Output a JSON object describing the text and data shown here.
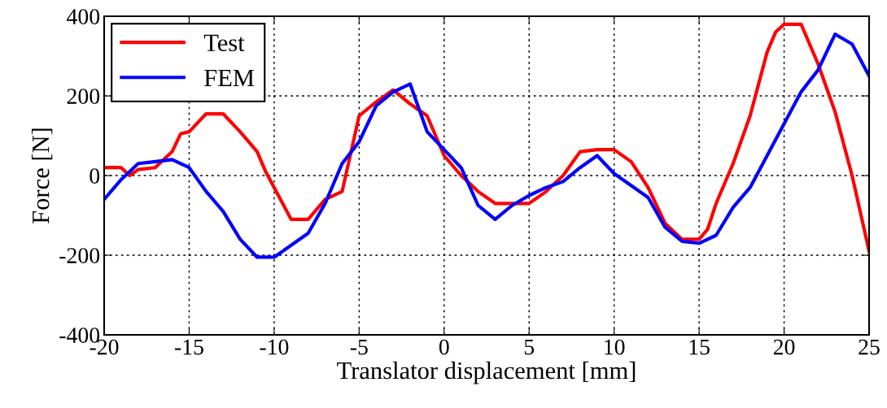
{
  "chart_data": {
    "type": "line",
    "xlabel": "Translator displacement [mm]",
    "ylabel": "Force [N]",
    "xlim": [
      -20,
      25
    ],
    "xticks": [
      -20,
      -15,
      -10,
      -5,
      0,
      5,
      10,
      15,
      20,
      25
    ],
    "ylim": [
      -400,
      400
    ],
    "yticks": [
      -400,
      -200,
      0,
      200,
      400
    ],
    "grid": true,
    "legend": "top left",
    "line_style": "solid",
    "marker": "none",
    "series": [
      {
        "name": "Test",
        "color": "#ff0000",
        "x": [
          -20,
          -19,
          -18.5,
          -18,
          -17,
          -16,
          -15.5,
          -15,
          -14,
          -13,
          -12,
          -11,
          -10.5,
          -10,
          -9,
          -8,
          -7,
          -6,
          -5,
          -4,
          -3,
          -2,
          -1,
          0,
          1,
          2,
          3,
          4,
          5,
          6,
          7,
          8,
          9,
          10,
          11,
          12,
          13,
          14,
          15,
          15.5,
          16,
          17,
          18,
          19,
          19.5,
          20,
          21,
          22,
          23,
          24,
          25
        ],
        "values": [
          20,
          20,
          0,
          15,
          20,
          60,
          105,
          110,
          155,
          155,
          110,
          60,
          10,
          -30,
          -110,
          -110,
          -60,
          -40,
          150,
          185,
          215,
          180,
          150,
          50,
          0,
          -40,
          -70,
          -70,
          -70,
          -40,
          0,
          60,
          65,
          65,
          35,
          -30,
          -120,
          -160,
          -160,
          -135,
          -70,
          30,
          150,
          310,
          360,
          380,
          380,
          280,
          160,
          0,
          -190
        ]
      },
      {
        "name": "FEM",
        "color": "#0000ff",
        "x": [
          -20,
          -19,
          -18,
          -17,
          -16,
          -15,
          -14,
          -13,
          -12,
          -11,
          -10,
          -9,
          -8,
          -7,
          -6,
          -5,
          -4,
          -3,
          -2,
          -1,
          0,
          1,
          2,
          3,
          4,
          5,
          6,
          7,
          8,
          9,
          10,
          11,
          12,
          13,
          14,
          15,
          16,
          17,
          18,
          19,
          20,
          21,
          22,
          23,
          24,
          25
        ],
        "values": [
          -60,
          -10,
          30,
          35,
          40,
          20,
          -40,
          -90,
          -160,
          -205,
          -205,
          -175,
          -145,
          -70,
          30,
          85,
          175,
          210,
          230,
          110,
          65,
          20,
          -75,
          -110,
          -75,
          -50,
          -30,
          -15,
          20,
          50,
          5,
          -25,
          -55,
          -130,
          -165,
          -170,
          -150,
          -80,
          -30,
          50,
          130,
          210,
          265,
          355,
          330,
          250
        ]
      }
    ]
  }
}
